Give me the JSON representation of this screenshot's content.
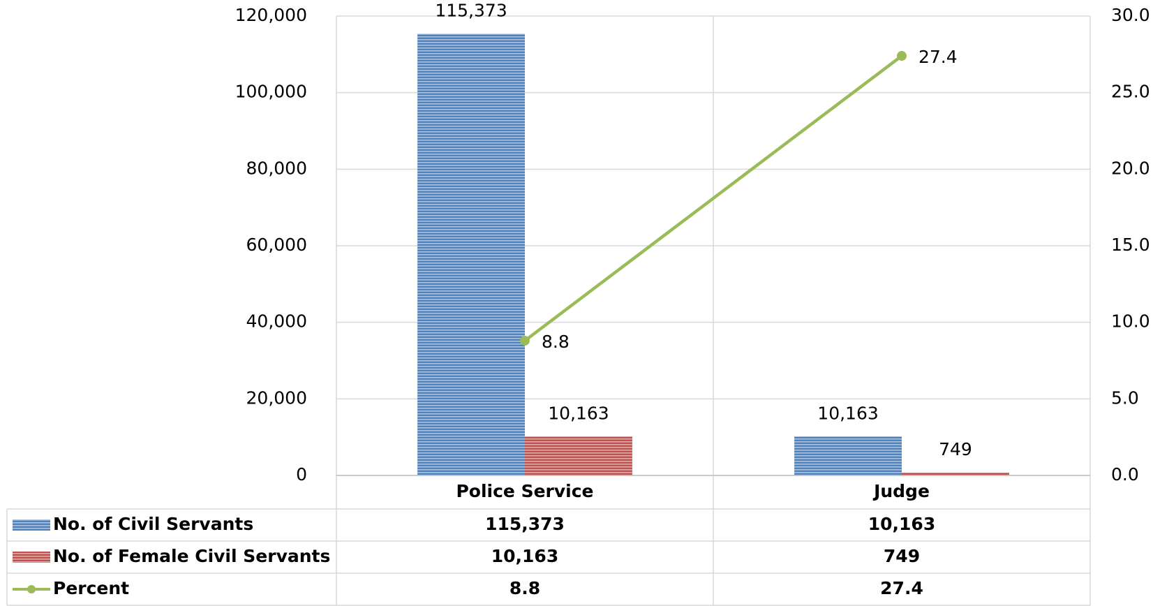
{
  "chart_data": {
    "type": "bar",
    "categories": [
      "Police Service",
      "Judge"
    ],
    "series": [
      {
        "name": "No. of Civil Servants",
        "color": "#4f81bd",
        "values": [
          115373,
          10163
        ],
        "value_labels": [
          "115,373",
          "10,163"
        ]
      },
      {
        "name": "No. of Female Civil Servants",
        "color": "#c0504d",
        "values": [
          10163,
          749
        ],
        "value_labels": [
          "10,163",
          "749"
        ]
      },
      {
        "name": "Percent",
        "type": "line",
        "axis": "y2",
        "color": "#9bbb59",
        "values": [
          8.8,
          27.4
        ]
      }
    ],
    "ylim": [
      0,
      120000
    ],
    "yticks": [
      0,
      {
        "value": 20000,
        "label": "20,000"
      },
      {
        "value": 40000,
        "label": "40,000"
      },
      {
        "value": 60000,
        "label": "60,000"
      },
      {
        "value": 80000,
        "label": "80,000"
      },
      {
        "value": 100000,
        "label": "100,000"
      },
      {
        "value": 120000,
        "label": "120,000"
      }
    ],
    "y2lim": [
      0,
      30
    ],
    "y2ticks": [
      {
        "value": 0,
        "label": "0.0"
      },
      {
        "value": 5,
        "label": "5.0"
      },
      {
        "value": 10,
        "label": "10.0"
      },
      {
        "value": 15,
        "label": "15.0"
      },
      {
        "value": 20,
        "label": "20.0"
      },
      {
        "value": 25,
        "label": "25.0"
      },
      {
        "value": 30,
        "label": "30.0"
      }
    ],
    "grid": true,
    "data_table": true
  }
}
